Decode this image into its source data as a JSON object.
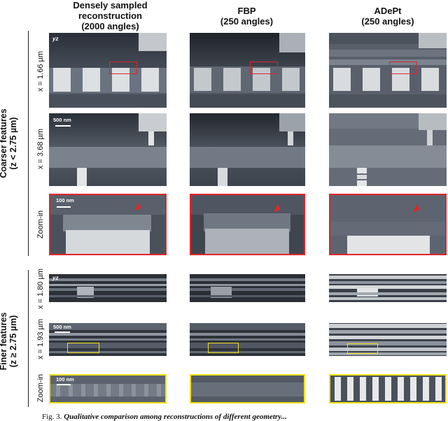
{
  "columns": [
    {
      "line1": "Densely sampled",
      "line2": "reconstruction",
      "line3": "(2000 angles)"
    },
    {
      "line1": "FBP",
      "line2": "(250 angles)"
    },
    {
      "line1": "ADePt",
      "line2": "(250 angles)"
    }
  ],
  "groups": {
    "coarse": {
      "line1": "Coarser features",
      "line2": "(z < 2.75 µm)"
    },
    "fine": {
      "line1": "Finer features",
      "line2": "(z ≥ 2.75 µm)"
    }
  },
  "rows": {
    "r1": "x = 1.66 µm",
    "r2": "x = 3.68 µm",
    "r3": "Zoom-in",
    "r4": "x = 1.80 µm",
    "r5": "x = 1.93 µm",
    "r6": "Zoom-in"
  },
  "annotations": {
    "plane_tag": "yz",
    "scale_500": "500 nm",
    "scale_100": "100 nm"
  },
  "caption": {
    "prefix": "Fig. 3.",
    "text": "Qualitative comparison among reconstructions of different geometry..."
  },
  "colors": {
    "highlight_red": "#e0262a",
    "highlight_yellow": "#f1e21b"
  }
}
